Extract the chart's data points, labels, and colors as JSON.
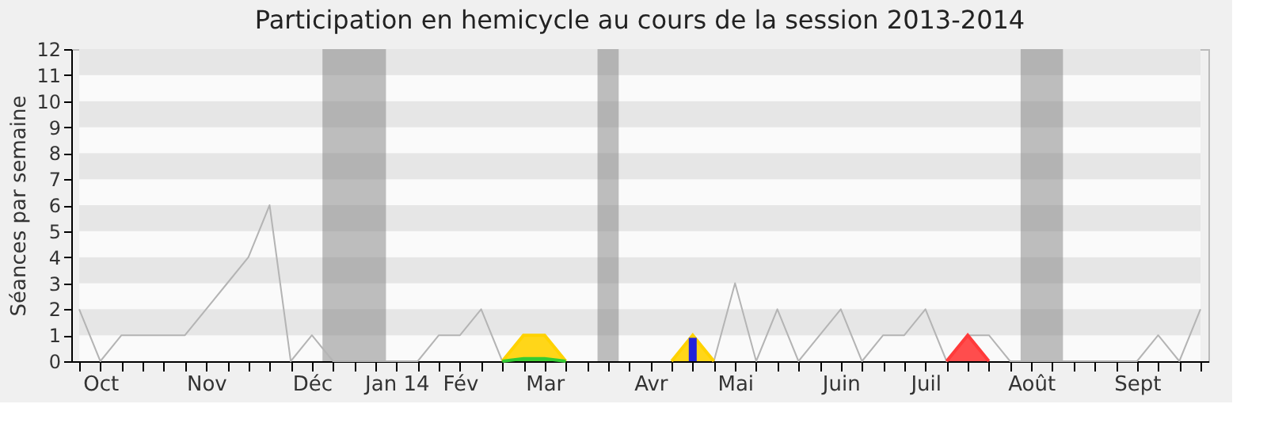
{
  "chart_data": {
    "type": "line",
    "title": "Participation en hemicycle au cours de la session 2013-2014",
    "ylabel": "Séances par semaine",
    "categories": [
      null,
      "Oct",
      null,
      null,
      null,
      null,
      "Nov",
      null,
      null,
      null,
      null,
      "Déc",
      null,
      null,
      null,
      "Jan 14",
      null,
      null,
      "Fév",
      null,
      null,
      null,
      "Mar",
      null,
      null,
      null,
      null,
      "Avr",
      null,
      null,
      null,
      "Mai",
      null,
      null,
      null,
      null,
      "Juin",
      null,
      null,
      null,
      "Juil",
      null,
      null,
      null,
      null,
      "Août",
      null,
      null,
      null,
      null,
      "Sept",
      null,
      null,
      null
    ],
    "series": [
      {
        "color": "#b4b4b4",
        "values": [
          2,
          0,
          1,
          1,
          1,
          1,
          2,
          3,
          4,
          6,
          0,
          1,
          0,
          0,
          0,
          0,
          0,
          1,
          1,
          2,
          0,
          null,
          null,
          null,
          null,
          null,
          null,
          null,
          null,
          null,
          0,
          3,
          0,
          2,
          0,
          1,
          2,
          0,
          1,
          1,
          2,
          0,
          1,
          1,
          0,
          0,
          0,
          0,
          0,
          0,
          0,
          1,
          0,
          2
        ]
      },
      {
        "type": "area",
        "color": "#ffd200",
        "values": [
          null,
          null,
          null,
          null,
          null,
          null,
          null,
          null,
          null,
          null,
          null,
          null,
          null,
          null,
          null,
          null,
          null,
          null,
          null,
          null,
          0,
          1,
          1,
          0,
          null,
          null,
          null,
          null,
          0,
          1,
          0,
          null,
          null,
          null,
          null,
          null,
          null,
          null,
          null,
          null,
          null,
          null,
          null,
          null,
          null,
          null,
          null,
          null,
          null,
          null,
          null,
          null,
          null,
          null
        ]
      },
      {
        "type": "area",
        "color": "#33cc33",
        "values": [
          null,
          null,
          null,
          null,
          null,
          null,
          null,
          null,
          null,
          null,
          null,
          null,
          null,
          null,
          null,
          null,
          null,
          null,
          null,
          null,
          0,
          0.1,
          0.1,
          0,
          null,
          null,
          null,
          null,
          null,
          null,
          null,
          null,
          null,
          null,
          null,
          null,
          null,
          null,
          null,
          null,
          null,
          null,
          null,
          null,
          null,
          null,
          null,
          null,
          null,
          null,
          null,
          null,
          null,
          null
        ]
      },
      {
        "type": "area",
        "color": "#ff3a3a",
        "values": [
          null,
          null,
          null,
          null,
          null,
          null,
          null,
          null,
          null,
          null,
          null,
          null,
          null,
          null,
          null,
          null,
          null,
          null,
          null,
          null,
          null,
          null,
          null,
          null,
          null,
          null,
          null,
          null,
          null,
          null,
          null,
          null,
          null,
          null,
          null,
          null,
          null,
          null,
          null,
          null,
          null,
          0,
          1,
          0,
          null,
          null,
          null,
          null,
          null,
          null,
          null,
          null,
          null,
          null
        ]
      },
      {
        "type": "bar",
        "color": "#2222dd",
        "values": [
          null,
          null,
          null,
          null,
          null,
          null,
          null,
          null,
          null,
          null,
          null,
          null,
          null,
          null,
          null,
          null,
          null,
          null,
          null,
          null,
          null,
          null,
          null,
          null,
          null,
          null,
          null,
          null,
          null,
          0.9,
          null,
          null,
          null,
          null,
          null,
          null,
          null,
          null,
          null,
          null,
          null,
          null,
          null,
          null,
          null,
          null,
          null,
          null,
          null,
          null,
          null,
          null,
          null,
          null
        ]
      }
    ],
    "ylim": [
      0,
      12
    ],
    "yticks": [
      0,
      1,
      2,
      3,
      4,
      5,
      6,
      7,
      8,
      9,
      10,
      11,
      12
    ]
  }
}
